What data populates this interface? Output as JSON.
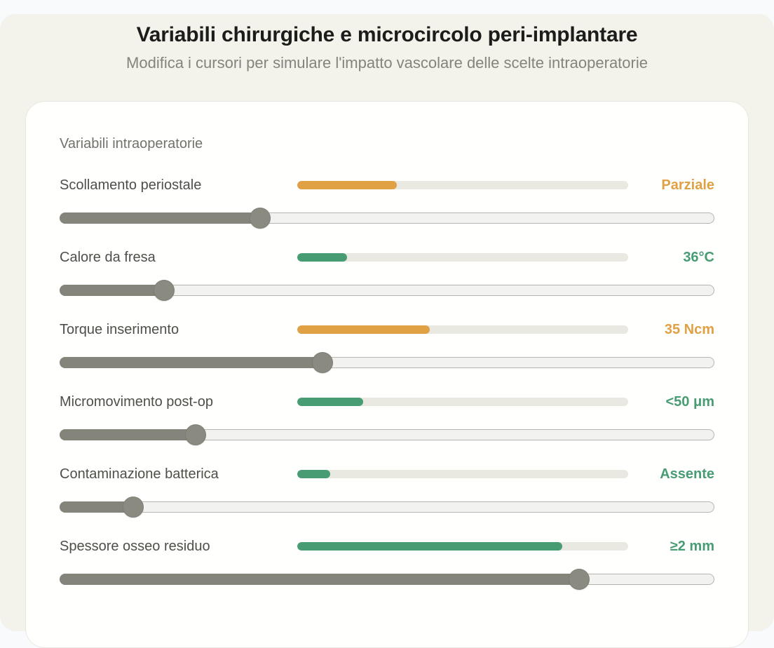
{
  "page": {
    "title": "Variabili chirurgiche e microcircolo peri-implantare",
    "subtitle": "Modifica i cursori per simulare l'impatto vascolare delle scelte intraoperatorie"
  },
  "panel": {
    "heading": "Variabili intraoperatorie",
    "sliders": [
      {
        "label": "Scollamento periostale",
        "value": "Parziale",
        "status": "warning",
        "progress_pct": 30,
        "slider_pct": 30.6
      },
      {
        "label": "Calore da fresa",
        "value": "36°C",
        "status": "ok",
        "progress_pct": 15,
        "slider_pct": 15.9
      },
      {
        "label": "Torque inserimento",
        "value": "35 Ncm",
        "status": "warning",
        "progress_pct": 40,
        "slider_pct": 40.2
      },
      {
        "label": "Micromovimento post-op",
        "value": "<50 μm",
        "status": "ok",
        "progress_pct": 20,
        "slider_pct": 20.8
      },
      {
        "label": "Contaminazione batterica",
        "value": "Assente",
        "status": "ok",
        "progress_pct": 10,
        "slider_pct": 11.2
      },
      {
        "label": "Spessore osseo residuo",
        "value": "≥2 mm",
        "status": "ok",
        "progress_pct": 80,
        "slider_pct": 79.3
      }
    ]
  },
  "colors": {
    "warning": "#e0a145",
    "ok": "#489c73",
    "slider_fill": "#85847a",
    "slider_thumb": "#8b8a80",
    "mini_track": "#e9e8e1",
    "surface": "#f3f2eb",
    "card": "#fffffe"
  }
}
